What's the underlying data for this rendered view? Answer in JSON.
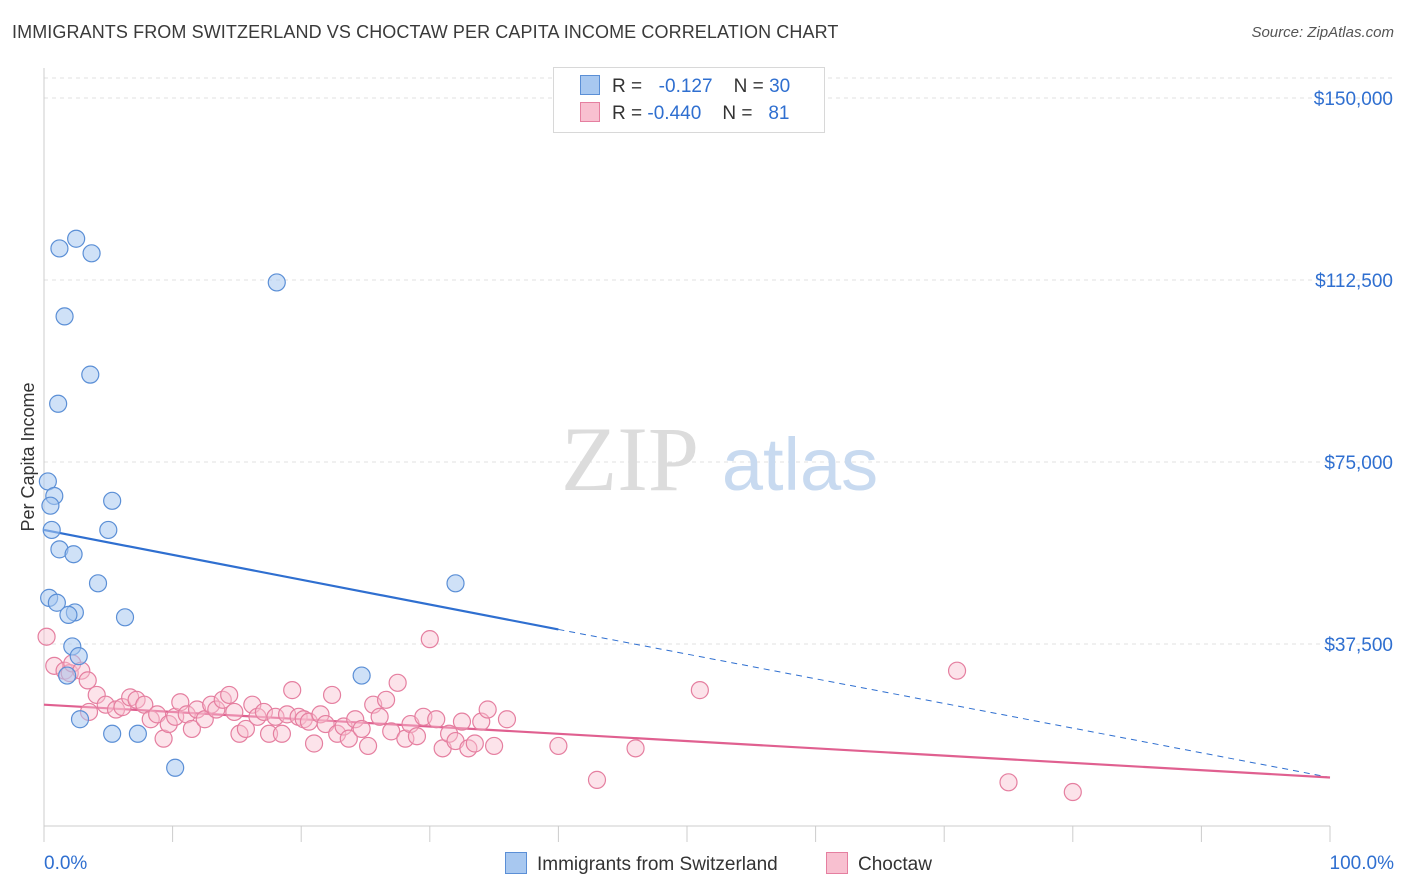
{
  "header": {
    "title": "IMMIGRANTS FROM SWITZERLAND VS CHOCTAW PER CAPITA INCOME CORRELATION CHART",
    "source": "Source: ZipAtlas.com"
  },
  "watermark": {
    "zip": "ZIP",
    "atlas": "atlas"
  },
  "legend": {
    "rows": [
      {
        "r_label": "R =",
        "r_value": "-0.127",
        "n_label": "N =",
        "n_value": "30",
        "color": "#a8c8f0",
        "border": "#5b8fd6"
      },
      {
        "r_label": "R =",
        "r_value": "-0.440",
        "n_label": "N =",
        "n_value": "81",
        "color": "#f8c0d0",
        "border": "#e57fa0"
      }
    ]
  },
  "bottom_legend": {
    "items": [
      {
        "label": "Immigrants from Switzerland",
        "color": "#a8c8f0",
        "border": "#5b8fd6"
      },
      {
        "label": "Choctaw",
        "color": "#f8c0d0",
        "border": "#e57fa0"
      }
    ]
  },
  "chart_data": {
    "type": "scatter",
    "title": "IMMIGRANTS FROM SWITZERLAND VS CHOCTAW PER CAPITA INCOME CORRELATION CHART",
    "xlabel": "",
    "ylabel": "Per Capita Income",
    "xlim": [
      0,
      100
    ],
    "ylim": [
      0,
      155000
    ],
    "x_tick_labels": [
      "0.0%",
      "100.0%"
    ],
    "y_ticks": [
      37500,
      75000,
      112500,
      150000
    ],
    "y_tick_labels": [
      "$37,500",
      "$75,000",
      "$112,500",
      "$150,000"
    ],
    "grid": true,
    "colors": {
      "series1": "#5b8fd6",
      "series2": "#e57fa0",
      "axis_text": "#2f6fd0"
    },
    "series": [
      {
        "name": "Immigrants from Switzerland",
        "r": -0.127,
        "n": 30,
        "points": [
          [
            0.3,
            71000
          ],
          [
            0.8,
            68000
          ],
          [
            0.5,
            66000
          ],
          [
            0.6,
            61000
          ],
          [
            0.4,
            47000
          ],
          [
            1.2,
            119000
          ],
          [
            2.5,
            121000
          ],
          [
            3.7,
            118000
          ],
          [
            1.6,
            105000
          ],
          [
            3.6,
            93000
          ],
          [
            1.1,
            87000
          ],
          [
            5.3,
            67000
          ],
          [
            5.0,
            61000
          ],
          [
            1.2,
            57000
          ],
          [
            2.3,
            56000
          ],
          [
            4.2,
            50000
          ],
          [
            1.0,
            46000
          ],
          [
            2.4,
            44000
          ],
          [
            1.9,
            43500
          ],
          [
            6.3,
            43000
          ],
          [
            2.2,
            37000
          ],
          [
            2.7,
            35000
          ],
          [
            1.8,
            31000
          ],
          [
            2.8,
            22000
          ],
          [
            5.3,
            19000
          ],
          [
            7.3,
            19000
          ],
          [
            10.2,
            12000
          ],
          [
            18.1,
            112000
          ],
          [
            32.0,
            50000
          ],
          [
            24.7,
            31000
          ]
        ],
        "trend": {
          "x0": 0,
          "y0": 61000,
          "x1": 40,
          "y1": 40500,
          "dash_to_x": 100,
          "dash_to_y": 10000
        }
      },
      {
        "name": "Choctaw",
        "r": -0.44,
        "n": 81,
        "points": [
          [
            0.2,
            39000
          ],
          [
            0.8,
            33000
          ],
          [
            1.6,
            32000
          ],
          [
            2.0,
            31500
          ],
          [
            2.2,
            33500
          ],
          [
            2.9,
            32000
          ],
          [
            3.4,
            30000
          ],
          [
            4.1,
            27000
          ],
          [
            3.5,
            23500
          ],
          [
            4.8,
            25000
          ],
          [
            5.6,
            24000
          ],
          [
            6.1,
            24500
          ],
          [
            6.7,
            26500
          ],
          [
            7.2,
            26000
          ],
          [
            7.8,
            25000
          ],
          [
            8.3,
            22000
          ],
          [
            8.8,
            23000
          ],
          [
            9.3,
            18000
          ],
          [
            9.7,
            21000
          ],
          [
            10.2,
            22500
          ],
          [
            10.6,
            25500
          ],
          [
            11.1,
            23000
          ],
          [
            11.5,
            20000
          ],
          [
            11.9,
            24000
          ],
          [
            12.5,
            22000
          ],
          [
            13.0,
            25000
          ],
          [
            13.4,
            24000
          ],
          [
            13.9,
            26000
          ],
          [
            14.4,
            27000
          ],
          [
            14.8,
            23500
          ],
          [
            15.2,
            19000
          ],
          [
            15.7,
            20000
          ],
          [
            16.2,
            25000
          ],
          [
            16.6,
            22500
          ],
          [
            17.1,
            23500
          ],
          [
            17.5,
            19000
          ],
          [
            18.0,
            22500
          ],
          [
            18.5,
            19000
          ],
          [
            18.9,
            23000
          ],
          [
            19.3,
            28000
          ],
          [
            19.8,
            22500
          ],
          [
            20.2,
            22000
          ],
          [
            20.6,
            21500
          ],
          [
            21.0,
            17000
          ],
          [
            21.5,
            23000
          ],
          [
            21.9,
            21000
          ],
          [
            22.4,
            27000
          ],
          [
            22.8,
            19000
          ],
          [
            23.3,
            20500
          ],
          [
            23.7,
            18000
          ],
          [
            24.2,
            22000
          ],
          [
            24.7,
            20000
          ],
          [
            25.2,
            16500
          ],
          [
            25.6,
            25000
          ],
          [
            26.1,
            22500
          ],
          [
            26.6,
            26000
          ],
          [
            27.0,
            19500
          ],
          [
            27.5,
            29500
          ],
          [
            28.1,
            18000
          ],
          [
            28.5,
            21000
          ],
          [
            29.0,
            18500
          ],
          [
            29.5,
            22500
          ],
          [
            30.0,
            38500
          ],
          [
            30.5,
            22000
          ],
          [
            31.0,
            16000
          ],
          [
            31.5,
            19000
          ],
          [
            32.0,
            17500
          ],
          [
            32.5,
            21500
          ],
          [
            33.0,
            16000
          ],
          [
            33.5,
            17000
          ],
          [
            34.0,
            21500
          ],
          [
            34.5,
            24000
          ],
          [
            35.0,
            16500
          ],
          [
            36.0,
            22000
          ],
          [
            40.0,
            16500
          ],
          [
            43.0,
            9500
          ],
          [
            46.0,
            16000
          ],
          [
            51.0,
            28000
          ],
          [
            71.0,
            32000
          ],
          [
            75.0,
            9000
          ],
          [
            80.0,
            7000
          ]
        ],
        "trend": {
          "x0": 0,
          "y0": 25000,
          "x1": 100,
          "y1": 10000
        }
      }
    ]
  }
}
